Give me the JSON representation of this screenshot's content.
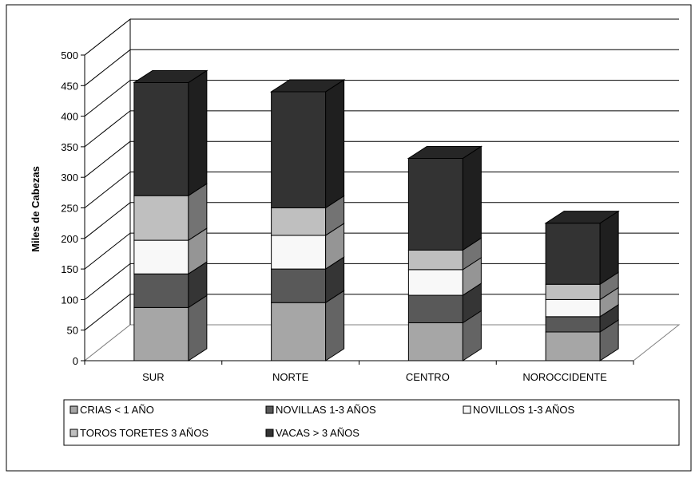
{
  "chart_data": {
    "type": "bar",
    "stacked": true,
    "three_d": true,
    "title": "",
    "xlabel": "",
    "ylabel": "Miles de Cabezas",
    "ylim": [
      0,
      500
    ],
    "yticks": [
      0,
      50,
      100,
      150,
      200,
      250,
      300,
      350,
      400,
      450,
      500
    ],
    "grid": true,
    "legend_position": "bottom",
    "categories": [
      "SUR",
      "NORTE",
      "CENTRO",
      "NOROCCIDENTE"
    ],
    "series": [
      {
        "name": "CRIAS < 1 AÑO",
        "color": "#a6a6a6",
        "values": [
          87,
          95,
          62,
          47
        ]
      },
      {
        "name": "NOVILLAS  1-3 AÑOS",
        "color": "#595959",
        "values": [
          55,
          55,
          45,
          25
        ]
      },
      {
        "name": "NOVILLOS 1-3 AÑOS",
        "color": "#f8f8f8",
        "values": [
          55,
          55,
          42,
          28
        ]
      },
      {
        "name": "TOROS TORETES  3  AÑOS",
        "color": "#bfbfbf",
        "values": [
          73,
          45,
          32,
          25
        ]
      },
      {
        "name": "VACAS > 3 AÑOS",
        "color": "#333333",
        "values": [
          185,
          190,
          150,
          100
        ]
      }
    ]
  }
}
